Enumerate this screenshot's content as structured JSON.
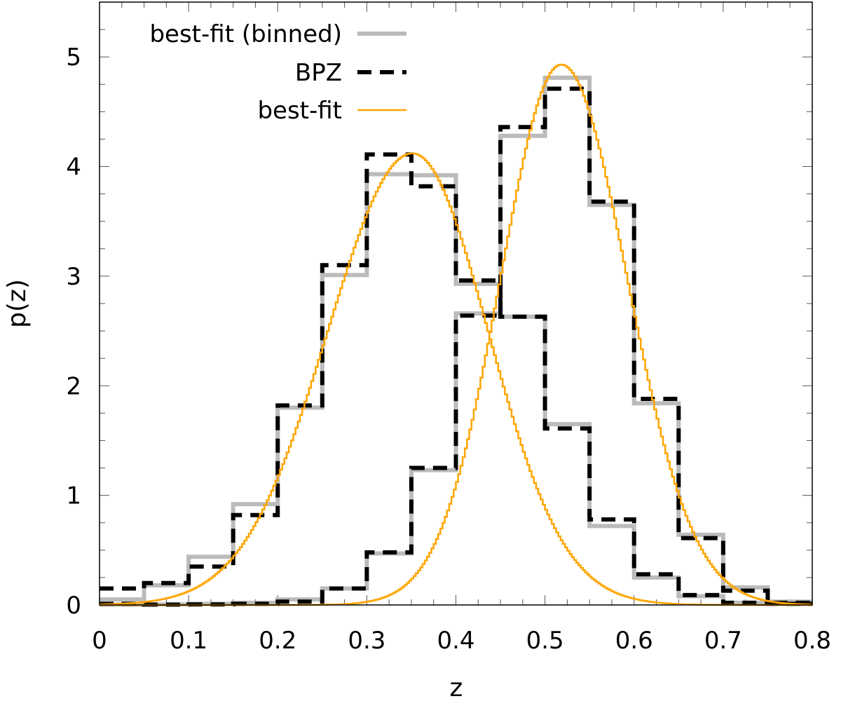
{
  "chart_data": {
    "type": "line",
    "xlabel": "z",
    "ylabel": "p(z)",
    "xlim": [
      0,
      0.8
    ],
    "ylim": [
      0,
      5.5
    ],
    "x_ticks": [
      0,
      0.1,
      0.2,
      0.3,
      0.4,
      0.5,
      0.6,
      0.7,
      0.8
    ],
    "x_tick_labels": [
      "0",
      "0.1",
      "0.2",
      "0.3",
      "0.4",
      "0.5",
      "0.6",
      "0.7",
      "0.8"
    ],
    "y_ticks": [
      0,
      1,
      2,
      3,
      4,
      5
    ],
    "y_tick_labels": [
      "0",
      "1",
      "2",
      "3",
      "4",
      "5"
    ],
    "legend_position": "top-left",
    "bin_edges": [
      0,
      0.05,
      0.1,
      0.15,
      0.2,
      0.25,
      0.3,
      0.35,
      0.4,
      0.45,
      0.5,
      0.55,
      0.6,
      0.65,
      0.7,
      0.75,
      0.8
    ],
    "series": [
      {
        "name": "best-fit (binned)",
        "style": "step-solid-thick",
        "color": "#bbbbbb",
        "curves": [
          [
            0.05,
            0.18,
            0.44,
            0.92,
            1.8,
            3.01,
            3.93,
            3.92,
            2.93,
            2.63,
            1.65,
            0.72,
            0.25,
            0.08,
            0.02,
            0.01
          ],
          [
            0.003,
            0.005,
            0.01,
            0.02,
            0.05,
            0.15,
            0.47,
            1.23,
            2.66,
            4.28,
            4.81,
            3.65,
            1.84,
            0.64,
            0.16,
            0.03
          ]
        ]
      },
      {
        "name": "BPZ",
        "style": "step-dashed",
        "color": "#000000",
        "curves": [
          [
            0.15,
            0.2,
            0.35,
            0.82,
            1.82,
            3.1,
            4.11,
            3.82,
            2.96,
            2.63,
            1.61,
            0.78,
            0.28,
            0.09,
            0.02,
            0.01
          ],
          [
            0.01,
            0.003,
            0.005,
            0.01,
            0.03,
            0.15,
            0.48,
            1.25,
            2.64,
            4.36,
            4.71,
            3.68,
            1.88,
            0.61,
            0.13,
            0.02
          ]
        ]
      },
      {
        "name": "best-fit",
        "style": "smooth",
        "color": "#ffa500",
        "curves": [
          {
            "peak": 4.12,
            "mode": 0.35,
            "sigma_left": 0.095,
            "sigma_right": 0.085
          },
          {
            "peak": 4.93,
            "mode": 0.517,
            "sigma_left": 0.068,
            "sigma_right": 0.074
          }
        ]
      }
    ]
  }
}
